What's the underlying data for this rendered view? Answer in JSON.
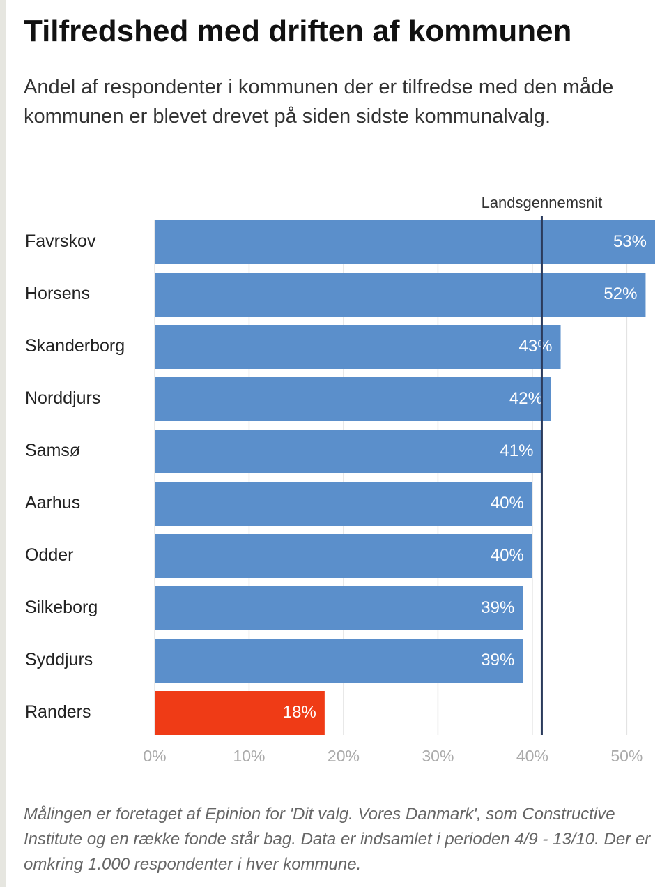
{
  "chart_data": {
    "type": "barh",
    "title": "Tilfredshed med driften af kommunen",
    "subtitle": "Andel af respondenter i kommunen der er tilfredse med den måde kommunen er blevet drevet på siden sidste kommunalvalg.",
    "categories": [
      "Favrskov",
      "Horsens",
      "Skanderborg",
      "Norddjurs",
      "Samsø",
      "Aarhus",
      "Odder",
      "Silkeborg",
      "Syddjurs",
      "Randers"
    ],
    "values": [
      53,
      52,
      43,
      42,
      41,
      40,
      40,
      39,
      39,
      18
    ],
    "value_labels": [
      "53%",
      "52%",
      "43%",
      "42%",
      "41%",
      "40%",
      "40%",
      "39%",
      "39%",
      "18%"
    ],
    "colors": [
      "#5b8fcb",
      "#5b8fcb",
      "#5b8fcb",
      "#5b8fcb",
      "#5b8fcb",
      "#5b8fcb",
      "#5b8fcb",
      "#5b8fcb",
      "#5b8fcb",
      "#ef3b16"
    ],
    "xlim": [
      0,
      53
    ],
    "xticks": [
      {
        "value": 0,
        "label": "0%"
      },
      {
        "value": 10,
        "label": "10%"
      },
      {
        "value": 20,
        "label": "20%"
      },
      {
        "value": 30,
        "label": "30%"
      },
      {
        "value": 40,
        "label": "40%"
      },
      {
        "value": 50,
        "label": "50%"
      }
    ],
    "grid": true,
    "reference_line": {
      "value": 41,
      "label": "Landsgennemsnit"
    },
    "note": "Målingen er foretaget af Epinion for 'Dit valg. Vores Danmark', som Constructive Institute og en række fonde står bag. Data er indsamlet i perioden 4/9 - 13/10. Der er omkring 1.000 respondenter i hver kommune."
  }
}
